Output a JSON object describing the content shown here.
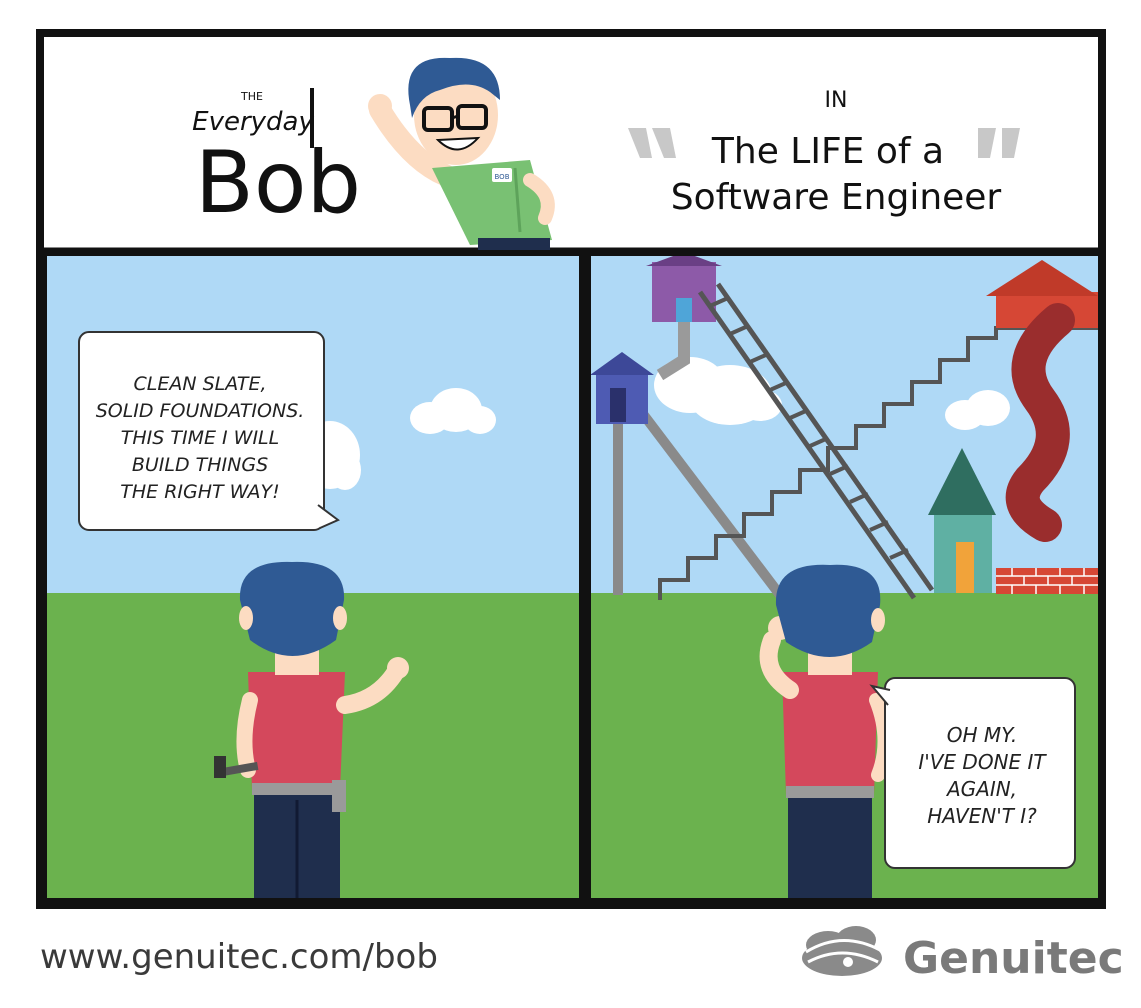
{
  "header": {
    "series_prefix": "THE",
    "series_word": "Everyday",
    "series_name": "Bob",
    "in_word": "IN",
    "title_line1": "The LIFE of a",
    "title_line2": "Software Engineer",
    "badge_text": "BOB"
  },
  "panel_left": {
    "speech": [
      "CLEAN SLATE,",
      "SOLID FOUNDATIONS.",
      "THIS TIME I WILL",
      "BUILD THINGS",
      "THE RIGHT WAY!"
    ]
  },
  "panel_right": {
    "speech": [
      "OH MY.",
      "I'VE DONE IT",
      "AGAIN,",
      "HAVEN'T I?"
    ]
  },
  "footer": {
    "url": "www.genuitec.com/bob",
    "brand": "Genuitec"
  },
  "colors": {
    "sky": "#afd9f6",
    "grass": "#6bb24e",
    "hair": "#2f5a94",
    "shirt_red": "#d4485c",
    "shirt_green": "#79c173",
    "pants": "#1f2e4d",
    "skin": "#fcdcc2"
  }
}
